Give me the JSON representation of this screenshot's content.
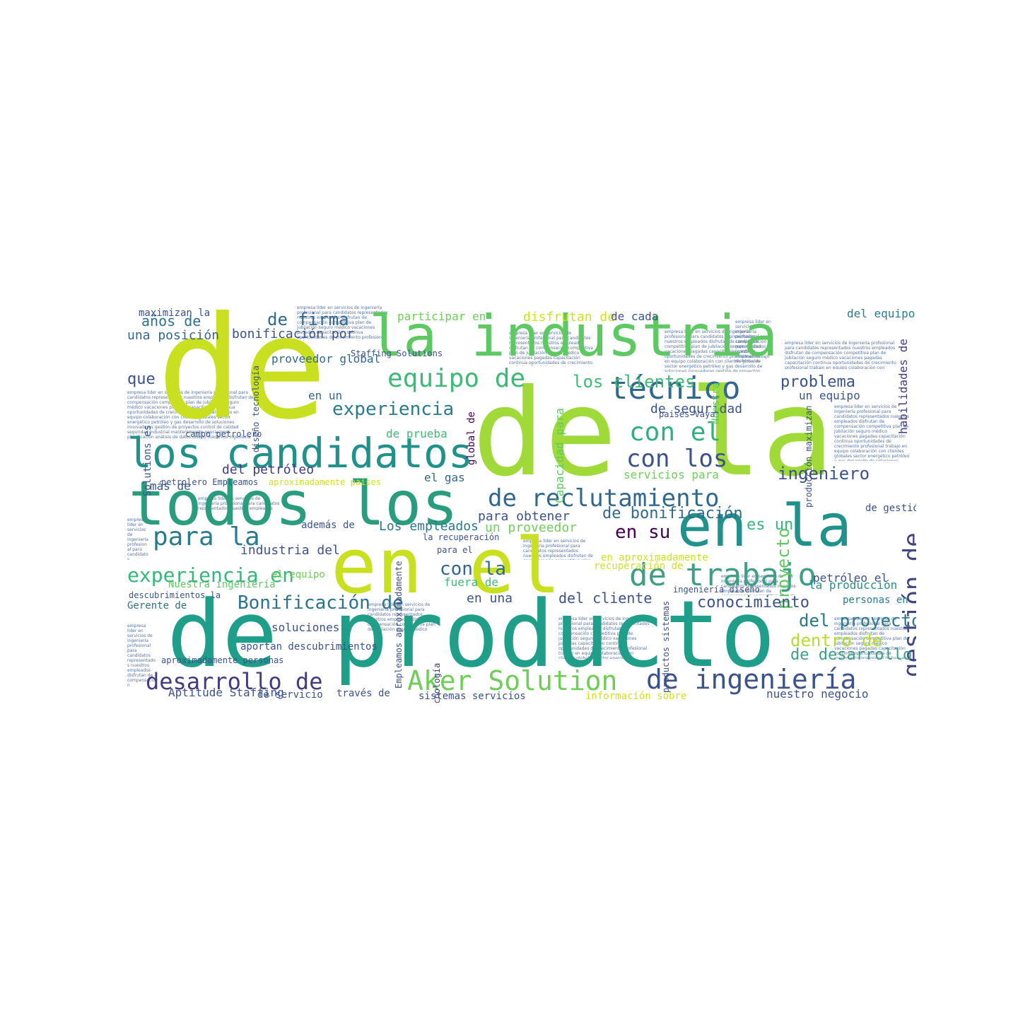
{
  "wordcloud": {
    "big_words": [
      {
        "id": "w1",
        "text": "de",
        "color": "#c8e020"
      },
      {
        "id": "w2",
        "text": "la industria",
        "color": "#5ec962"
      },
      {
        "id": "w3",
        "text": "de la",
        "color": "#a0da39"
      },
      {
        "id": "w4",
        "text": "los candidatos",
        "color": "#21918c"
      },
      {
        "id": "w5",
        "text": "todos los",
        "color": "#2a9d7e"
      },
      {
        "id": "w6",
        "text": "en el",
        "color": "#c8e020"
      },
      {
        "id": "w7",
        "text": "en la",
        "color": "#21918c"
      },
      {
        "id": "w8",
        "text": "de producto",
        "color": "#1f9e89"
      },
      {
        "id": "w9",
        "text": "de reclutamiento",
        "color": "#31688e"
      },
      {
        "id": "w10",
        "text": "de trabajo",
        "color": "#3e9f86"
      },
      {
        "id": "w11",
        "text": "equipo de",
        "color": "#3bbb75"
      },
      {
        "id": "w12",
        "text": "técnico",
        "color": "#31688e"
      },
      {
        "id": "w13",
        "text": "con el",
        "color": "#2db27d"
      },
      {
        "id": "w14",
        "text": "con los",
        "color": "#3b528b"
      },
      {
        "id": "w15",
        "text": "experiencia",
        "color": "#287c8e"
      },
      {
        "id": "w16",
        "text": "para la",
        "color": "#287c8e"
      },
      {
        "id": "w17",
        "text": "experiencia en",
        "color": "#35b779"
      },
      {
        "id": "w18",
        "text": "Bonificación de",
        "color": "#2c728e"
      },
      {
        "id": "w19",
        "text": "desarrollo de",
        "color": "#443a83"
      },
      {
        "id": "w20",
        "text": "Aker Solution",
        "color": "#6ece58"
      },
      {
        "id": "w21",
        "text": "de ingeniería",
        "color": "#3b528b"
      },
      {
        "id": "w22",
        "text": "gestión de",
        "color": "#414487"
      },
      {
        "id": "w23",
        "text": "proyecto",
        "color": "#5ec962"
      },
      {
        "id": "w24",
        "text": "del proyecto",
        "color": "#2a788e"
      },
      {
        "id": "w25",
        "text": "conocimiento",
        "color": "#3b528b"
      },
      {
        "id": "w26",
        "text": "dentro de",
        "color": "#b5de2b"
      },
      {
        "id": "w27",
        "text": "de desarrollo",
        "color": "#3e9f86"
      },
      {
        "id": "w28",
        "text": "problema",
        "color": "#3b528b"
      },
      {
        "id": "w29",
        "text": "ingeniero",
        "color": "#3b528b"
      },
      {
        "id": "w30",
        "text": "es un",
        "color": "#35b779"
      },
      {
        "id": "w31",
        "text": "en su",
        "color": "#440154"
      },
      {
        "id": "w32",
        "text": "de bonificación",
        "color": "#31688e"
      },
      {
        "id": "w33",
        "text": "con la",
        "color": "#31688e"
      },
      {
        "id": "w34",
        "text": "del cliente",
        "color": "#3b528b"
      },
      {
        "id": "w35",
        "text": "los clientes",
        "color": "#3bbb75"
      },
      {
        "id": "w36",
        "text": "de seguridad",
        "color": "#3b528b"
      },
      {
        "id": "w37",
        "text": "de firma",
        "color": "#31688e"
      },
      {
        "id": "w38",
        "text": "bonificación por",
        "color": "#3b528b"
      },
      {
        "id": "w39",
        "text": "años de",
        "color": "#2c728e"
      },
      {
        "id": "w40",
        "text": "una posición",
        "color": "#31688e"
      },
      {
        "id": "w41",
        "text": "que",
        "color": "#3b528b"
      },
      {
        "id": "w42",
        "text": "en un",
        "color": "#31688e"
      },
      {
        "id": "w43",
        "text": "proveedor global",
        "color": "#31688e"
      },
      {
        "id": "w44",
        "text": "de prueba",
        "color": "#3bbb75"
      },
      {
        "id": "w45",
        "text": "más de",
        "color": "#3b528b"
      },
      {
        "id": "w46",
        "text": "del petróleo",
        "color": "#443a83"
      },
      {
        "id": "w47",
        "text": "el gas",
        "color": "#31688e"
      },
      {
        "id": "w48",
        "text": "servicios para",
        "color": "#6ece58"
      },
      {
        "id": "w49",
        "text": "para obtener",
        "color": "#3b528b"
      },
      {
        "id": "w50",
        "text": "un proveedor",
        "color": "#6ece58"
      },
      {
        "id": "w51",
        "text": "además de",
        "color": "#3b528b"
      },
      {
        "id": "w52",
        "text": "Los empleados",
        "color": "#2a788e"
      },
      {
        "id": "w53",
        "text": "industria del",
        "color": "#3b528b"
      },
      {
        "id": "w54",
        "text": "el equipo",
        "color": "#6ece58"
      },
      {
        "id": "w55",
        "text": "Nuestra ingeniería",
        "color": "#5ec962"
      },
      {
        "id": "w56",
        "text": "fuera de",
        "color": "#3bbb75"
      },
      {
        "id": "w57",
        "text": "en una",
        "color": "#3b528b"
      },
      {
        "id": "w58",
        "text": "soluciones",
        "color": "#3b528b"
      },
      {
        "id": "w59",
        "text": "aportan descubrimientos",
        "color": "#3b528b"
      },
      {
        "id": "w60",
        "text": "Aptitude Staffing",
        "color": "#3b528b"
      },
      {
        "id": "w61",
        "text": "de servicio",
        "color": "#3b528b"
      },
      {
        "id": "w62",
        "text": "través de",
        "color": "#3b528b"
      },
      {
        "id": "w63",
        "text": "sistemas servicios",
        "color": "#3b528b"
      },
      {
        "id": "w64",
        "text": "información sobre",
        "color": "#d0e11c"
      },
      {
        "id": "w65",
        "text": "nuestro negocio",
        "color": "#3b528b"
      },
      {
        "id": "w66",
        "text": "petróleo el",
        "color": "#3b528b"
      },
      {
        "id": "w67",
        "text": "la producción",
        "color": "#21918c"
      },
      {
        "id": "w68",
        "text": "personas en",
        "color": "#287c8e"
      },
      {
        "id": "w69",
        "text": "de gestión",
        "color": "#3b528b"
      },
      {
        "id": "w70",
        "text": "un equipo",
        "color": "#3b528b"
      },
      {
        "id": "w71",
        "text": "del equipo",
        "color": "#287c8e"
      },
      {
        "id": "w72",
        "text": "habilidades de",
        "color": "#443a83"
      },
      {
        "id": "w73",
        "text": "disfrutan de",
        "color": "#d0e11c"
      },
      {
        "id": "w74",
        "text": "participar en",
        "color": "#6ece58"
      },
      {
        "id": "w75",
        "text": "de cada",
        "color": "#3b528b"
      },
      {
        "id": "w76",
        "text": "maximizan la",
        "color": "#3b528b"
      },
      {
        "id": "w77",
        "text": "Solutions es",
        "color": "#3b528b"
      },
      {
        "id": "w78",
        "text": "campo petrolero",
        "color": "#3b528b"
      },
      {
        "id": "w79",
        "text": "descubrimientos la",
        "color": "#3b528b"
      },
      {
        "id": "w80",
        "text": "Gerente de",
        "color": "#2c728e"
      },
      {
        "id": "w81",
        "text": "aproximadamente personas",
        "color": "#3b528b"
      },
      {
        "id": "w82",
        "text": "recuperación de",
        "color": "#d0e11c"
      },
      {
        "id": "w83",
        "text": "en aproximadamente",
        "color": "#d0e11c"
      },
      {
        "id": "w84",
        "text": "Capacidad para",
        "color": "#5ec962"
      },
      {
        "id": "w85",
        "text": "global de",
        "color": "#440154"
      },
      {
        "id": "w86",
        "text": "diseño tecnología",
        "color": "#3b528b"
      },
      {
        "id": "w87",
        "text": "ingeniería diseño",
        "color": "#3b528b"
      },
      {
        "id": "w88",
        "text": "tecnología",
        "color": "#443a83"
      },
      {
        "id": "w89",
        "text": "productos sistemas",
        "color": "#3b528b"
      },
      {
        "id": "w90",
        "text": "aproximadamente países",
        "color": "#d0e11c"
      },
      {
        "id": "w91",
        "text": "petrolero Empleamos",
        "color": "#3b528b"
      },
      {
        "id": "w92",
        "text": "paises Vaya",
        "color": "#3b528b"
      },
      {
        "id": "w93",
        "text": "producción maximizan",
        "color": "#3b528b"
      },
      {
        "id": "w94",
        "text": "Empleamos aproximadamente",
        "color": "#3b528b"
      },
      {
        "id": "w95",
        "text": "la recuperación",
        "color": "#3b528b"
      },
      {
        "id": "w96",
        "text": "para el",
        "color": "#3b528b"
      },
      {
        "id": "w97",
        "text": "Nuestra",
        "color": "#5ec962"
      },
      {
        "id": "w98",
        "text": "Staffing Solutions",
        "color": "#3b528b"
      }
    ],
    "filler_text": "empresa líder en servicios de ingeniería profesional para candidatos representados nuestros empleados disfrutan de compensación competitiva plan de jubilación seguro médico vacaciones pagadas capacitación continua oportunidades de crecimiento profesional trabajo en equipo colaboración con clientes globales sector energético petróleo y gas desarrollo de soluciones innovadoras gestión de proyectos control de calidad seguridad industrial mantenimiento operaciones planificación análisis de datos diseño mecánico ingeniería eléctrica automatización procesos de producción requisitos del puesto título universitario experiencia mínima comunicación efectiva liderazgo resolución de problemas atención al detalle trabajo bajo presión disponibilidad para viajar inglés avanzado conocimiento de normas técnicas certificaciones vigentes ubicación oficina central horario flexible beneficios adicionales bonos por desempeño programa de referidos reclutamiento especializado agencia de talento búsqueda de profesionales calificados oportunidad única carrera internacional entorno dinámico cultura corporativa valores compromiso excelencia responsabilidad integridad innovación sostenibilidad clientes satisfechos proyectos exitosos tecnología avanzada herramientas modernas software especializado laboratorio pruebas de campo equipos multidisciplinarios informes técnicos documentación especificaciones presupuestos cronogramas entregables revisiones auditorías mejora continua"
  }
}
